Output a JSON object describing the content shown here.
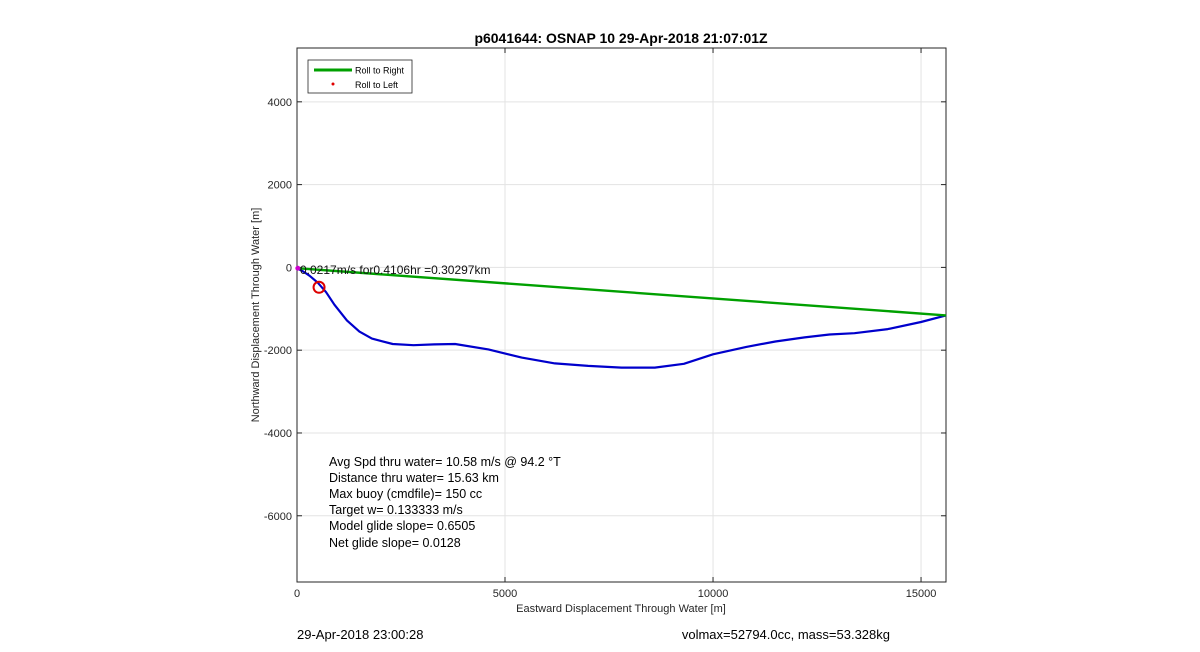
{
  "chart_data": {
    "type": "line",
    "title": "p6041644: OSNAP 10 29-Apr-2018 21:07:01Z",
    "xlabel": "Eastward Displacement Through Water [m]",
    "ylabel": "Northward Displacement Through Water [m]",
    "xlim": [
      0,
      15600
    ],
    "ylim": [
      -7600,
      5300
    ],
    "xticks": [
      0,
      5000,
      10000,
      15000
    ],
    "yticks": [
      -6000,
      -4000,
      -2000,
      0,
      2000,
      4000
    ],
    "grid": true,
    "legend_position": "top-left",
    "legend": [
      {
        "label": "Roll to Right",
        "color": "#00a000",
        "marker": "line"
      },
      {
        "label": "Roll to Left",
        "color": "#e00000",
        "marker": "dot"
      }
    ],
    "series": [
      {
        "color": "#0000cc",
        "x": [
          0,
          150,
          300,
          500,
          700,
          900,
          1200,
          1500,
          1800,
          2300,
          2800,
          3300,
          3800,
          4600,
          5400,
          6200,
          7000,
          7800,
          8600,
          9300,
          10000,
          10800,
          11500,
          12200,
          12800,
          13400,
          14200,
          15000,
          15600
        ],
        "y": [
          -20,
          -100,
          -200,
          -370,
          -600,
          -900,
          -1280,
          -1550,
          -1720,
          -1850,
          -1880,
          -1860,
          -1850,
          -1980,
          -2180,
          -2320,
          -2380,
          -2420,
          -2420,
          -2330,
          -2100,
          -1920,
          -1790,
          -1690,
          -1620,
          -1590,
          -1490,
          -1320,
          -1160
        ]
      },
      {
        "color": "#00a000",
        "x": [
          0,
          15600
        ],
        "y": [
          -20,
          -1160
        ]
      }
    ],
    "markers": [
      {
        "x": 530,
        "y": -480,
        "shape": "circle",
        "color": "#dd0000"
      },
      {
        "x": 20,
        "y": -20,
        "shape": "dot",
        "color": "#cc00cc"
      }
    ],
    "start_label_garble": "0.0217m/s for0.4106hr =0.30297km",
    "stats": [
      "Avg Spd thru water= 10.58 m/s @  94.2 °T",
      "Distance thru water= 15.63 km",
      "Max buoy (cmdfile)= 150 cc",
      "Target w= 0.133333 m/s",
      "Model glide slope= 0.6505",
      "Net glide slope= 0.0128"
    ]
  },
  "footer": {
    "timestamp": "29-Apr-2018 23:00:28",
    "volmax_mass": "volmax=52794.0cc, mass=53.328kg"
  }
}
